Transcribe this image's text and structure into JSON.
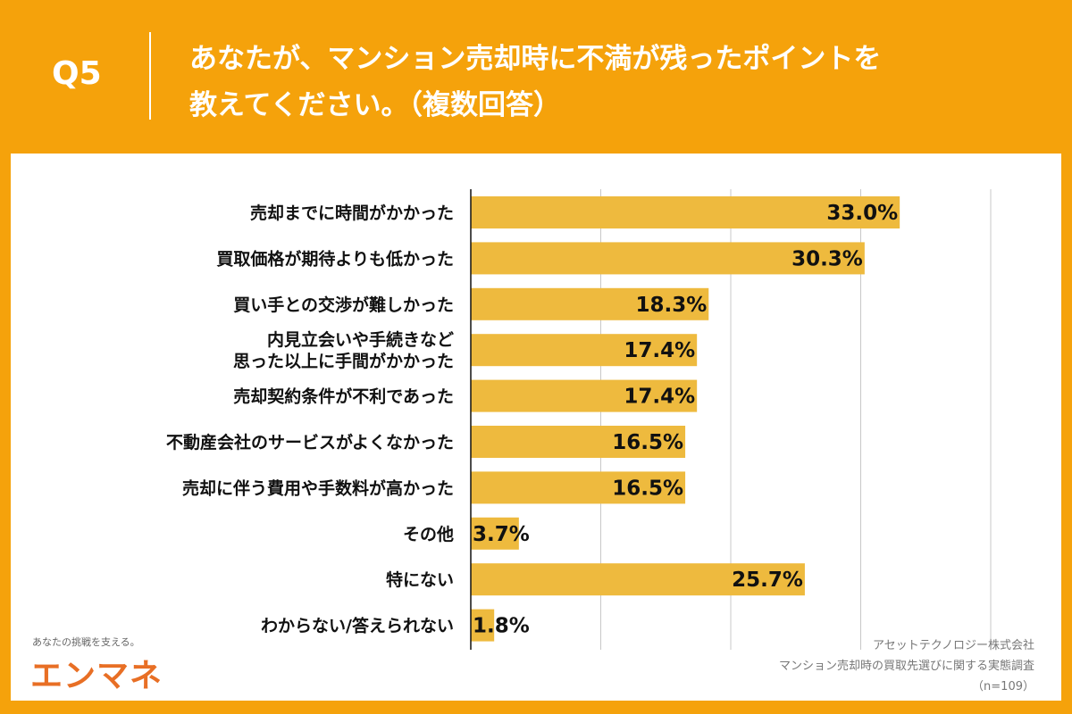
{
  "header": {
    "q_label": "Q5",
    "title": "あなたが、マンション売却時に不満が残ったポイントを\n教えてください。（複数回答）"
  },
  "brand": {
    "tagline": "あなたの挑戦を支える。",
    "logo": "エンマネ"
  },
  "source": {
    "company": "アセットテクノロジー株式会社",
    "survey": "マンション売却時の買取先選びに関する実態調査",
    "n": "（n=109）"
  },
  "colors": {
    "background": "#F5A20B",
    "bar": "#EEBA3E",
    "logo": "#E86F25"
  },
  "chart_data": {
    "type": "bar",
    "orientation": "horizontal",
    "xlim": [
      0,
      40
    ],
    "grid": true,
    "gridlines": [
      10,
      20,
      30,
      40
    ],
    "categories": [
      [
        "売却までに時間がかかった"
      ],
      [
        "買取価格が期待よりも低かった"
      ],
      [
        "買い手との交渉が難しかった"
      ],
      [
        "内見立会いや手続きなど",
        "思った以上に手間がかかった"
      ],
      [
        "売却契約条件が不利であった"
      ],
      [
        "不動産会社のサービスがよくなかった"
      ],
      [
        "売却に伴う費用や手数料が高かった"
      ],
      [
        "その他"
      ],
      [
        "特にない"
      ],
      [
        "わからない/答えられない"
      ]
    ],
    "values": [
      33.0,
      30.3,
      18.3,
      17.4,
      17.4,
      16.5,
      16.5,
      3.7,
      25.7,
      1.8
    ],
    "data_labels": [
      "33.0%",
      "30.3%",
      "18.3%",
      "17.4%",
      "17.4%",
      "16.5%",
      "16.5%",
      "3.7%",
      "25.7%",
      "1.8%"
    ]
  }
}
